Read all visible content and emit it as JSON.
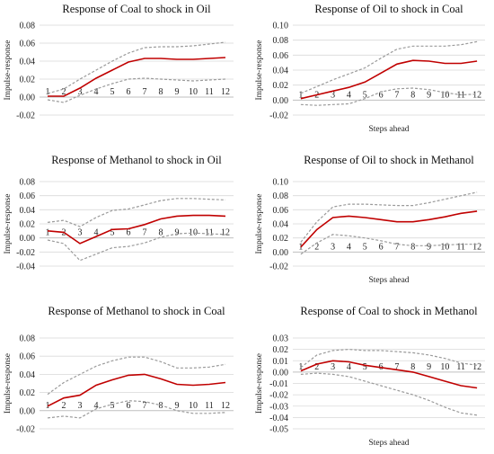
{
  "chart_data": [
    {
      "type": "line",
      "title": "Response of Coal to shock in Oil",
      "xlabel": "",
      "ylabel": "Impulse-response",
      "x": [
        1,
        2,
        3,
        4,
        5,
        6,
        7,
        8,
        9,
        10,
        11,
        12
      ],
      "ylim": [
        -0.02,
        0.08
      ],
      "yticks": [
        -0.02,
        0.0,
        0.02,
        0.04,
        0.06,
        0.08
      ],
      "grid": true,
      "series": [
        {
          "values": [
            0.001,
            0.001,
            0.01,
            0.021,
            0.03,
            0.039,
            0.043,
            0.043,
            0.042,
            0.042,
            0.043,
            0.044
          ]
        },
        {
          "values": [
            0.004,
            0.009,
            0.02,
            0.03,
            0.04,
            0.049,
            0.055,
            0.056,
            0.056,
            0.057,
            0.059,
            0.061
          ]
        },
        {
          "values": [
            -0.003,
            -0.006,
            0.002,
            0.009,
            0.015,
            0.02,
            0.021,
            0.02,
            0.019,
            0.018,
            0.019,
            0.02
          ]
        }
      ]
    },
    {
      "type": "line",
      "title": "Response of Oil to shock in Coal",
      "xlabel": "Steps ahead",
      "ylabel": "Impulse-response",
      "x": [
        1,
        2,
        3,
        4,
        5,
        6,
        7,
        8,
        9,
        10,
        11,
        12
      ],
      "ylim": [
        -0.02,
        0.1
      ],
      "yticks": [
        -0.02,
        0.0,
        0.02,
        0.04,
        0.06,
        0.08,
        0.1
      ],
      "grid": true,
      "series": [
        {
          "values": [
            0.002,
            0.007,
            0.012,
            0.017,
            0.024,
            0.036,
            0.048,
            0.053,
            0.052,
            0.049,
            0.049,
            0.052
          ]
        },
        {
          "values": [
            0.009,
            0.018,
            0.027,
            0.035,
            0.043,
            0.056,
            0.068,
            0.072,
            0.072,
            0.072,
            0.074,
            0.078
          ]
        },
        {
          "values": [
            -0.006,
            -0.007,
            -0.006,
            -0.005,
            0.002,
            0.011,
            0.015,
            0.016,
            0.014,
            0.01,
            0.007,
            0.008
          ]
        }
      ]
    },
    {
      "type": "line",
      "title": "Response of Methanol to shock in Oil",
      "xlabel": "",
      "ylabel": "Impulse-response",
      "x": [
        1,
        2,
        3,
        4,
        5,
        6,
        7,
        8,
        9,
        10,
        11,
        12
      ],
      "ylim": [
        -0.04,
        0.08
      ],
      "yticks": [
        -0.04,
        -0.02,
        0.0,
        0.02,
        0.04,
        0.06,
        0.08
      ],
      "grid": true,
      "series": [
        {
          "values": [
            0.01,
            0.008,
            -0.008,
            0.002,
            0.012,
            0.013,
            0.019,
            0.027,
            0.031,
            0.032,
            0.032,
            0.031
          ]
        },
        {
          "values": [
            0.022,
            0.025,
            0.016,
            0.029,
            0.039,
            0.041,
            0.047,
            0.053,
            0.056,
            0.056,
            0.055,
            0.054
          ]
        },
        {
          "values": [
            -0.003,
            -0.008,
            -0.032,
            -0.023,
            -0.014,
            -0.012,
            -0.007,
            0.001,
            0.006,
            0.007,
            0.006,
            0.005
          ]
        }
      ]
    },
    {
      "type": "line",
      "title": "Response of Oil to shock in Methanol",
      "xlabel": "Steps ahead",
      "ylabel": "Impulse-response",
      "x": [
        1,
        2,
        3,
        4,
        5,
        6,
        7,
        8,
        9,
        10,
        11,
        12
      ],
      "ylim": [
        -0.02,
        0.1
      ],
      "yticks": [
        -0.02,
        0.0,
        0.02,
        0.04,
        0.06,
        0.08,
        0.1
      ],
      "grid": true,
      "series": [
        {
          "values": [
            0.007,
            0.032,
            0.049,
            0.051,
            0.049,
            0.046,
            0.043,
            0.043,
            0.046,
            0.05,
            0.055,
            0.058
          ]
        },
        {
          "values": [
            0.014,
            0.043,
            0.064,
            0.068,
            0.068,
            0.067,
            0.066,
            0.066,
            0.07,
            0.075,
            0.08,
            0.085
          ]
        },
        {
          "values": [
            -0.003,
            0.013,
            0.025,
            0.023,
            0.02,
            0.016,
            0.011,
            0.009,
            0.009,
            0.01,
            0.011,
            0.011
          ]
        }
      ]
    },
    {
      "type": "line",
      "title": "Response of Methanol to shock in Coal",
      "xlabel": "",
      "ylabel": "Impulse-response",
      "x": [
        1,
        2,
        3,
        4,
        5,
        6,
        7,
        8,
        9,
        10,
        11,
        12
      ],
      "ylim": [
        -0.02,
        0.08
      ],
      "yticks": [
        -0.02,
        0.0,
        0.02,
        0.04,
        0.06,
        0.08
      ],
      "grid": true,
      "series": [
        {
          "values": [
            0.005,
            0.014,
            0.017,
            0.028,
            0.034,
            0.039,
            0.04,
            0.035,
            0.029,
            0.028,
            0.029,
            0.031
          ]
        },
        {
          "values": [
            0.018,
            0.031,
            0.04,
            0.049,
            0.055,
            0.059,
            0.059,
            0.054,
            0.047,
            0.047,
            0.048,
            0.051
          ]
        },
        {
          "values": [
            -0.008,
            -0.006,
            -0.008,
            0.002,
            0.007,
            0.011,
            0.01,
            0.006,
            0.0,
            -0.003,
            -0.003,
            -0.002
          ]
        }
      ]
    },
    {
      "type": "line",
      "title": "Response of Coal to shock in Methanol",
      "xlabel": "Steps ahead",
      "ylabel": "Impulse-response",
      "x": [
        1,
        2,
        3,
        4,
        5,
        6,
        7,
        8,
        9,
        10,
        11,
        12
      ],
      "ylim": [
        -0.05,
        0.03
      ],
      "yticks": [
        -0.05,
        -0.04,
        -0.03,
        -0.02,
        -0.01,
        0.0,
        0.01,
        0.02,
        0.03
      ],
      "grid": true,
      "series": [
        {
          "values": [
            0.001,
            0.007,
            0.01,
            0.009,
            0.006,
            0.004,
            0.002,
            0.0,
            -0.004,
            -0.008,
            -0.012,
            -0.014
          ]
        },
        {
          "values": [
            0.004,
            0.015,
            0.019,
            0.02,
            0.019,
            0.019,
            0.018,
            0.017,
            0.015,
            0.012,
            0.008,
            0.006
          ]
        },
        {
          "values": [
            -0.002,
            -0.001,
            -0.002,
            -0.004,
            -0.008,
            -0.012,
            -0.016,
            -0.02,
            -0.025,
            -0.031,
            -0.036,
            -0.038
          ]
        }
      ]
    }
  ]
}
